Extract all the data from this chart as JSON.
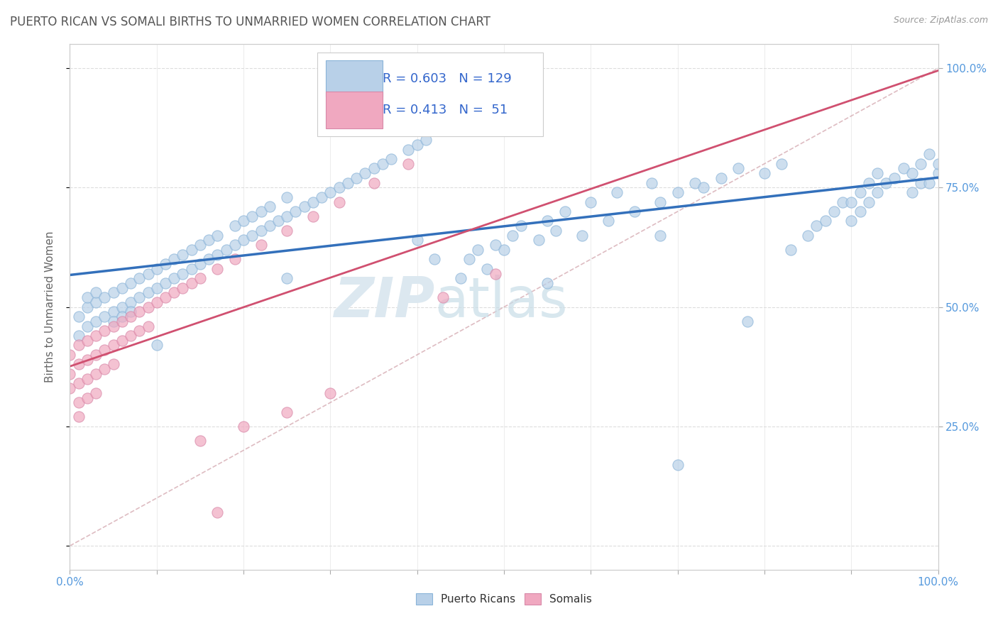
{
  "title": "PUERTO RICAN VS SOMALI BIRTHS TO UNMARRIED WOMEN CORRELATION CHART",
  "source_text": "Source: ZipAtlas.com",
  "ylabel": "Births to Unmarried Women",
  "watermark": "ZIPatlas",
  "pr_R": 0.603,
  "pr_N": 129,
  "so_R": 0.413,
  "so_N": 51,
  "pr_color": "#b8d0e8",
  "so_color": "#f0a8c0",
  "pr_line_color": "#3370bb",
  "so_line_color": "#d05070",
  "diag_color": "#d0a0a8",
  "background_color": "#ffffff",
  "title_color": "#555555",
  "tick_color": "#5599dd",
  "grid_color": "#dddddd",
  "pr_scatter_x": [
    0.01,
    0.01,
    0.02,
    0.02,
    0.02,
    0.03,
    0.03,
    0.03,
    0.04,
    0.04,
    0.05,
    0.05,
    0.05,
    0.06,
    0.06,
    0.06,
    0.07,
    0.07,
    0.07,
    0.08,
    0.08,
    0.09,
    0.09,
    0.1,
    0.1,
    0.11,
    0.11,
    0.12,
    0.12,
    0.13,
    0.13,
    0.14,
    0.14,
    0.15,
    0.15,
    0.16,
    0.16,
    0.17,
    0.17,
    0.18,
    0.19,
    0.19,
    0.2,
    0.2,
    0.21,
    0.21,
    0.22,
    0.22,
    0.23,
    0.23,
    0.24,
    0.25,
    0.25,
    0.26,
    0.27,
    0.28,
    0.29,
    0.3,
    0.31,
    0.32,
    0.33,
    0.34,
    0.35,
    0.36,
    0.37,
    0.39,
    0.4,
    0.41,
    0.43,
    0.44,
    0.45,
    0.46,
    0.47,
    0.48,
    0.49,
    0.51,
    0.52,
    0.54,
    0.55,
    0.56,
    0.57,
    0.59,
    0.6,
    0.62,
    0.63,
    0.65,
    0.67,
    0.68,
    0.7,
    0.72,
    0.73,
    0.75,
    0.77,
    0.8,
    0.82,
    0.83,
    0.85,
    0.86,
    0.87,
    0.88,
    0.89,
    0.9,
    0.9,
    0.91,
    0.91,
    0.92,
    0.92,
    0.93,
    0.93,
    0.94,
    0.95,
    0.96,
    0.97,
    0.97,
    0.98,
    0.98,
    0.99,
    0.99,
    1.0,
    1.0,
    0.1,
    0.25,
    0.4,
    0.42,
    0.5,
    0.55,
    0.68,
    0.7,
    0.78
  ],
  "pr_scatter_y": [
    0.48,
    0.44,
    0.5,
    0.46,
    0.52,
    0.47,
    0.51,
    0.53,
    0.48,
    0.52,
    0.49,
    0.53,
    0.47,
    0.5,
    0.54,
    0.48,
    0.51,
    0.55,
    0.49,
    0.52,
    0.56,
    0.53,
    0.57,
    0.54,
    0.58,
    0.55,
    0.59,
    0.56,
    0.6,
    0.57,
    0.61,
    0.58,
    0.62,
    0.59,
    0.63,
    0.6,
    0.64,
    0.61,
    0.65,
    0.62,
    0.63,
    0.67,
    0.64,
    0.68,
    0.65,
    0.69,
    0.66,
    0.7,
    0.67,
    0.71,
    0.68,
    0.69,
    0.73,
    0.7,
    0.71,
    0.72,
    0.73,
    0.74,
    0.75,
    0.76,
    0.77,
    0.78,
    0.79,
    0.8,
    0.81,
    0.83,
    0.84,
    0.85,
    0.87,
    0.88,
    0.56,
    0.6,
    0.62,
    0.58,
    0.63,
    0.65,
    0.67,
    0.64,
    0.68,
    0.66,
    0.7,
    0.65,
    0.72,
    0.68,
    0.74,
    0.7,
    0.76,
    0.72,
    0.74,
    0.76,
    0.75,
    0.77,
    0.79,
    0.78,
    0.8,
    0.62,
    0.65,
    0.67,
    0.68,
    0.7,
    0.72,
    0.68,
    0.72,
    0.7,
    0.74,
    0.72,
    0.76,
    0.74,
    0.78,
    0.76,
    0.77,
    0.79,
    0.74,
    0.78,
    0.76,
    0.8,
    0.82,
    0.76,
    0.78,
    0.8,
    0.42,
    0.56,
    0.64,
    0.6,
    0.62,
    0.55,
    0.65,
    0.17,
    0.47
  ],
  "so_scatter_x": [
    0.0,
    0.0,
    0.0,
    0.01,
    0.01,
    0.01,
    0.01,
    0.01,
    0.02,
    0.02,
    0.02,
    0.02,
    0.03,
    0.03,
    0.03,
    0.03,
    0.04,
    0.04,
    0.04,
    0.05,
    0.05,
    0.05,
    0.06,
    0.06,
    0.07,
    0.07,
    0.08,
    0.08,
    0.09,
    0.09,
    0.1,
    0.11,
    0.12,
    0.13,
    0.14,
    0.15,
    0.17,
    0.19,
    0.22,
    0.25,
    0.28,
    0.31,
    0.35,
    0.39,
    0.15,
    0.2,
    0.25,
    0.3,
    0.43,
    0.49,
    0.17
  ],
  "so_scatter_y": [
    0.4,
    0.36,
    0.33,
    0.42,
    0.38,
    0.34,
    0.3,
    0.27,
    0.43,
    0.39,
    0.35,
    0.31,
    0.44,
    0.4,
    0.36,
    0.32,
    0.45,
    0.41,
    0.37,
    0.46,
    0.42,
    0.38,
    0.47,
    0.43,
    0.48,
    0.44,
    0.49,
    0.45,
    0.5,
    0.46,
    0.51,
    0.52,
    0.53,
    0.54,
    0.55,
    0.56,
    0.58,
    0.6,
    0.63,
    0.66,
    0.69,
    0.72,
    0.76,
    0.8,
    0.22,
    0.25,
    0.28,
    0.32,
    0.52,
    0.57,
    0.07
  ]
}
